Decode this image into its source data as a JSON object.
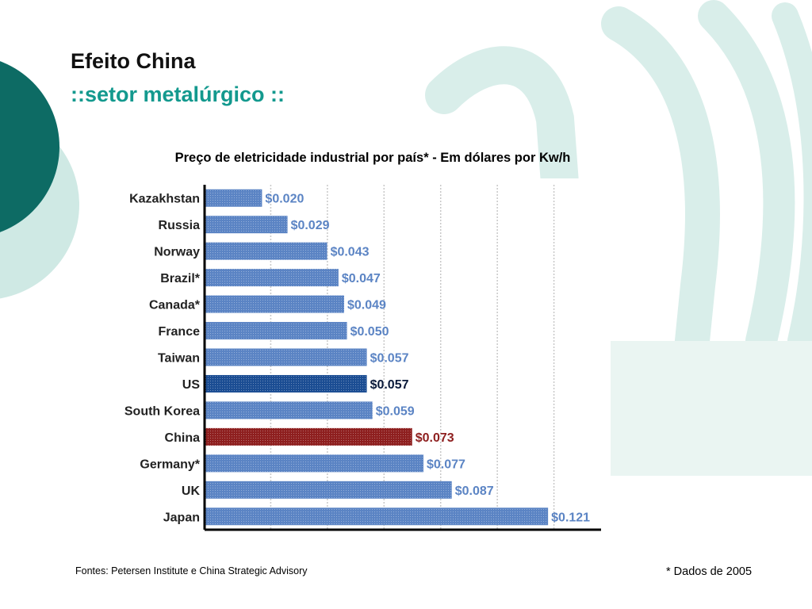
{
  "slide": {
    "title": "Efeito China",
    "subtitle": "::setor metalúrgico ::",
    "source": "Fontes: Petersen Institute e China Strategic Advisory",
    "note": "* Dados de 2005"
  },
  "colors": {
    "accent_teal": "#13998e",
    "dark_teal": "#0d6b64",
    "light_teal": "#cfe9e4",
    "bar_default": "#5b84c4",
    "bar_us": "#1b4d93",
    "bar_china": "#8e1f1f"
  },
  "chart_data": {
    "type": "bar",
    "orientation": "horizontal",
    "title": "Preço de eletricidade industrial por país* - Em dólares por Kw/h",
    "categories": [
      "Kazakhstan",
      "Russia",
      "Norway",
      "Brazil*",
      "Canada*",
      "France",
      "Taiwan",
      "US",
      "South Korea",
      "China",
      "Germany*",
      "UK",
      "Japan"
    ],
    "values": [
      0.02,
      0.029,
      0.043,
      0.047,
      0.049,
      0.05,
      0.057,
      0.057,
      0.059,
      0.073,
      0.077,
      0.087,
      0.121
    ],
    "labels": [
      "$0.020",
      "$0.029",
      "$0.043",
      "$0.047",
      "$0.049",
      "$0.050",
      "$0.057",
      "$0.057",
      "$0.059",
      "$0.073",
      "$0.077",
      "$0.087",
      "$0.121"
    ],
    "highlight": {
      "US": "#1b4d93",
      "China": "#8e1f1f"
    },
    "xlim": [
      0,
      0.14
    ],
    "grid": true
  }
}
